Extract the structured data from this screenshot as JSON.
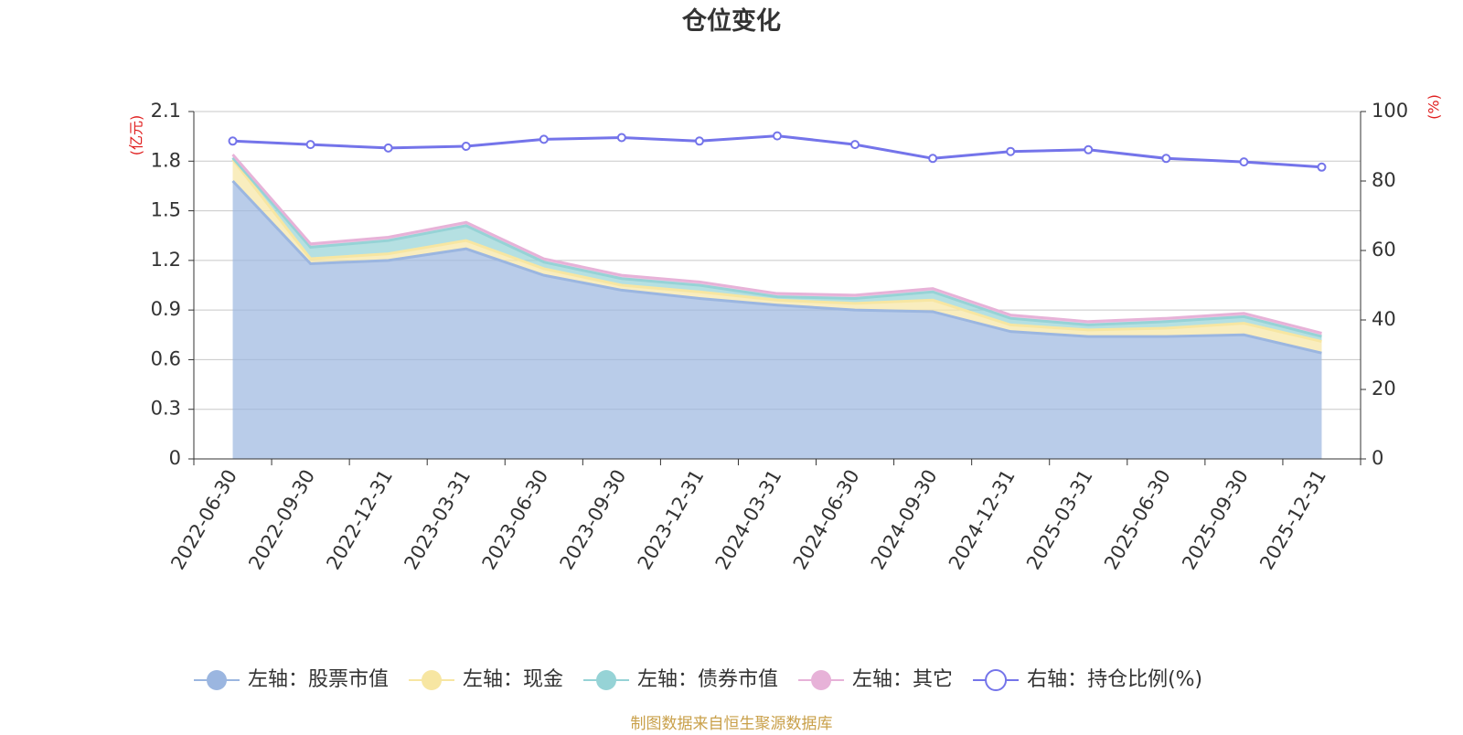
{
  "chart_data": {
    "type": "area",
    "title": "仓位变化",
    "x": [
      "2022-06-30",
      "2022-09-30",
      "2022-12-31",
      "2023-03-31",
      "2023-06-30",
      "2023-09-30",
      "2023-12-31",
      "2024-03-31",
      "2024-06-30",
      "2024-09-30",
      "2024-12-31",
      "2025-03-31",
      "2025-06-30",
      "2025-09-30",
      "2025-12-31"
    ],
    "stacked": true,
    "left_axis": {
      "label": "(亿元)",
      "ylim": [
        0,
        2.1
      ],
      "ticks": [
        "0",
        "0.3",
        "0.6",
        "0.9",
        "1.2",
        "1.5",
        "1.8",
        "2.1"
      ]
    },
    "right_axis": {
      "label": "(%)",
      "ylim": [
        0,
        100
      ],
      "ticks": [
        "0",
        "20",
        "40",
        "60",
        "80",
        "100"
      ]
    },
    "series": [
      {
        "name": "左轴：股票市值",
        "axis": "left",
        "color": "#9bb6e0",
        "values": [
          1.68,
          1.18,
          1.2,
          1.27,
          1.11,
          1.02,
          0.97,
          0.93,
          0.9,
          0.89,
          0.77,
          0.74,
          0.74,
          0.75,
          0.64
        ]
      },
      {
        "name": "左轴：现金",
        "axis": "left",
        "color": "#f7e6a2",
        "values": [
          0.13,
          0.03,
          0.04,
          0.05,
          0.04,
          0.03,
          0.04,
          0.03,
          0.04,
          0.07,
          0.04,
          0.04,
          0.05,
          0.07,
          0.07
        ]
      },
      {
        "name": "左轴：债券市值",
        "axis": "left",
        "color": "#96d3d6",
        "values": [
          0.01,
          0.07,
          0.08,
          0.09,
          0.04,
          0.04,
          0.04,
          0.02,
          0.03,
          0.05,
          0.04,
          0.03,
          0.04,
          0.04,
          0.03
        ]
      },
      {
        "name": "左轴：其它",
        "axis": "left",
        "color": "#e7b2d8",
        "values": [
          0.02,
          0.02,
          0.02,
          0.02,
          0.02,
          0.02,
          0.02,
          0.02,
          0.02,
          0.02,
          0.02,
          0.02,
          0.02,
          0.02,
          0.02
        ]
      },
      {
        "name": "右轴：持仓比例(%)",
        "axis": "right",
        "type": "line",
        "color": "#7474ea",
        "values": [
          91.5,
          90.5,
          89.5,
          90,
          92,
          92.5,
          91.5,
          93,
          90.5,
          86.5,
          88.5,
          89,
          86.5,
          85.5,
          84
        ]
      }
    ],
    "grid": true,
    "legend_position": "bottom"
  },
  "footer": {
    "source": "制图数据来自恒生聚源数据库"
  }
}
